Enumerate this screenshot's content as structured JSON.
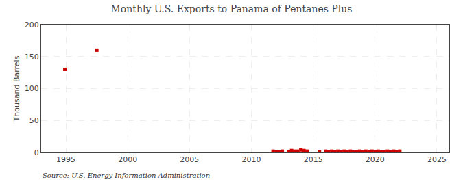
{
  "chart_data": {
    "type": "scatter",
    "title": "Monthly U.S. Exports to Panama of Pentanes Plus",
    "ylabel": "Thousand Barrels",
    "annotations": [
      "Source: U.S. Energy Information Administration"
    ],
    "x": [
      1994.917,
      1997.5,
      2011.75,
      2012.0,
      2012.25,
      2012.5,
      2013.0,
      2013.25,
      2013.5,
      2013.75,
      2014.0,
      2014.25,
      2014.5,
      2015.5,
      2016.0,
      2016.25,
      2016.5,
      2016.75,
      2017.0,
      2017.25,
      2017.5,
      2017.75,
      2018.0,
      2018.25,
      2018.5,
      2018.75,
      2019.0,
      2019.25,
      2019.5,
      2019.75,
      2020.0,
      2020.25,
      2020.5,
      2020.75,
      2021.0,
      2021.25,
      2021.5,
      2021.75,
      2022.0
    ],
    "values": [
      130,
      160,
      2,
      1,
      1,
      2,
      1,
      3,
      2,
      2,
      4,
      3,
      2,
      1,
      2,
      1,
      2,
      1,
      2,
      1,
      2,
      1,
      2,
      1,
      1,
      2,
      1,
      2,
      1,
      2,
      1,
      2,
      1,
      1,
      2,
      1,
      2,
      1,
      2
    ],
    "color": "#cc0000",
    "marker": "square",
    "xlim": [
      1993,
      2026
    ],
    "ylim": [
      0,
      200
    ],
    "xticks": [
      1995,
      2000,
      2005,
      2010,
      2015,
      2020,
      2025
    ],
    "yticks": [
      0,
      50,
      100,
      150,
      200
    ],
    "grid": true
  }
}
